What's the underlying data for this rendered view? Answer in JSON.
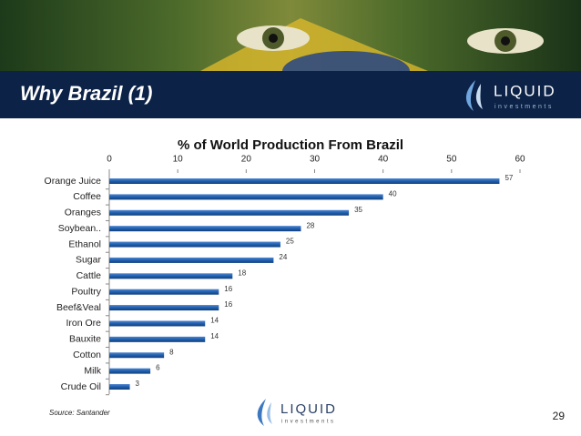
{
  "header": {
    "title": "Why Brazil (1)",
    "logo": {
      "name": "LIQUID",
      "tagline": "investments"
    }
  },
  "chart_data": {
    "type": "bar",
    "orientation": "horizontal",
    "title": "% of World Production From Brazil",
    "categories": [
      "Orange Juice",
      "Coffee",
      "Oranges",
      "Soybean..",
      "Ethanol",
      "Sugar",
      "Cattle",
      "Poultry",
      "Beef&Veal",
      "Iron Ore",
      "Bauxite",
      "Cotton",
      "Milk",
      "Crude Oil"
    ],
    "values": [
      57,
      40,
      35,
      28,
      25,
      24,
      18,
      16,
      16,
      14,
      14,
      8,
      6,
      3
    ],
    "color": "#1f5fae",
    "xlim": [
      0,
      60
    ],
    "xticks": [
      0,
      10,
      20,
      30,
      40,
      50,
      60
    ],
    "grid": false
  },
  "footer": {
    "source": "Source: Santander",
    "page": "29"
  }
}
